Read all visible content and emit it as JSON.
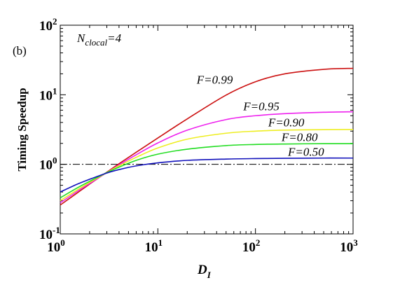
{
  "chart_data": {
    "type": "line",
    "panel_label": "(b)",
    "annotation": {
      "prefix": "N",
      "subscript": "clocal",
      "suffix": "=4"
    },
    "xlabel": {
      "main": "D",
      "sub": "I"
    },
    "ylabel": "Timing Speedup",
    "x_scale": "log",
    "y_scale": "log",
    "xlim": [
      1,
      1000
    ],
    "ylim": [
      0.1,
      100
    ],
    "x_ticks": [
      {
        "base": "10",
        "exp": "0"
      },
      {
        "base": "10",
        "exp": "1"
      },
      {
        "base": "10",
        "exp": "2"
      },
      {
        "base": "10",
        "exp": "3"
      }
    ],
    "y_ticks": [
      {
        "base": "10",
        "exp": "-1"
      },
      {
        "base": "10",
        "exp": "0"
      },
      {
        "base": "10",
        "exp": "1"
      },
      {
        "base": "10",
        "exp": "2"
      }
    ],
    "reference_line": {
      "y": 1.0,
      "style": "dash-dot",
      "color": "#000000"
    },
    "grid": false,
    "x": [
      1,
      1.5,
      2,
      3,
      4,
      6,
      10,
      20,
      50,
      100,
      200,
      500,
      1000
    ],
    "series": [
      {
        "name": "F=0.99",
        "color": "#cc1111",
        "values": [
          0.26,
          0.39,
          0.52,
          0.77,
          1.02,
          1.49,
          2.39,
          4.5,
          9.9,
          15.4,
          20.0,
          23.2,
          24.0
        ]
      },
      {
        "name": "F=0.95",
        "color": "#ee22ee",
        "values": [
          0.28,
          0.41,
          0.53,
          0.76,
          0.98,
          1.37,
          2.03,
          3.1,
          4.4,
          5.0,
          5.35,
          5.6,
          5.7
        ]
      },
      {
        "name": "F=0.90",
        "color": "#eeee22",
        "values": [
          0.3,
          0.43,
          0.55,
          0.76,
          0.95,
          1.26,
          1.72,
          2.3,
          2.8,
          3.0,
          3.1,
          3.15,
          3.17
        ]
      },
      {
        "name": "F=0.80",
        "color": "#22dd22",
        "values": [
          0.33,
          0.46,
          0.57,
          0.76,
          0.91,
          1.14,
          1.4,
          1.65,
          1.86,
          1.93,
          1.96,
          1.98,
          1.98
        ]
      },
      {
        "name": "F=0.50",
        "color": "#1111bb",
        "values": [
          0.4,
          0.52,
          0.61,
          0.75,
          0.84,
          0.95,
          1.05,
          1.14,
          1.19,
          1.21,
          1.22,
          1.23,
          1.23
        ]
      }
    ],
    "label_anchors": [
      {
        "name": "F=0.99",
        "x": 25,
        "y": 14.5
      },
      {
        "name": "F=0.95",
        "x": 75,
        "y": 6.0
      },
      {
        "name": "F=0.90",
        "x": 135,
        "y": 3.5
      },
      {
        "name": "F=0.80",
        "x": 185,
        "y": 2.15
      },
      {
        "name": "F=0.50",
        "x": 215,
        "y": 1.32
      }
    ]
  }
}
